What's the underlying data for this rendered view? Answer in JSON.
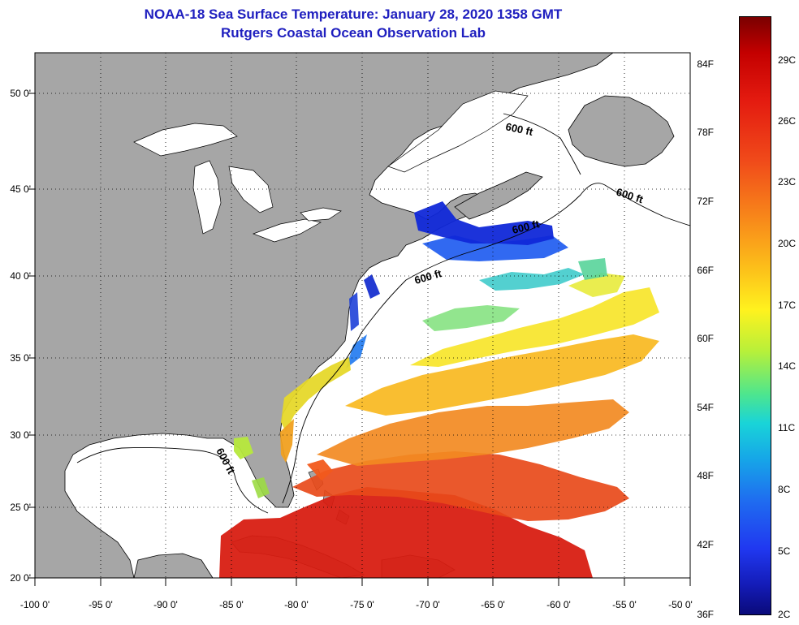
{
  "title": "NOAA-18 Sea Surface Temperature:  January 28, 2020 1358 GMT",
  "subtitle": "Rutgers Coastal Ocean Observation Lab",
  "lat_labels": [
    "50 0'",
    "45 0'",
    "40 0'",
    "35 0'",
    "30 0'",
    "25 0'",
    "20 0'"
  ],
  "lon_labels": [
    "-100 0'",
    "-95 0'",
    "-90 0'",
    "-85 0'",
    "-80 0'",
    "-75 0'",
    "-70 0'",
    "-65 0'",
    "-60 0'",
    "-55 0'",
    "-50 0'"
  ],
  "depth_contour_label": "600 ft",
  "colorbar": {
    "fahrenheit_labels": [
      "84F",
      "78F",
      "72F",
      "66F",
      "60F",
      "54F",
      "48F",
      "42F",
      "36F"
    ],
    "celsius_labels": [
      "29C",
      "26C",
      "23C",
      "20C",
      "17C",
      "14C",
      "11C",
      "8C",
      "5C",
      "2C"
    ],
    "range_f": [
      36,
      90
    ],
    "range_c": [
      2,
      32
    ]
  },
  "colors": {
    "land": "#a6a6a6",
    "no_data": "#ffffff",
    "title": "#1f1fbf"
  },
  "map": {
    "lon_range": [
      -100,
      -50
    ],
    "lat_range": [
      20,
      52
    ]
  }
}
